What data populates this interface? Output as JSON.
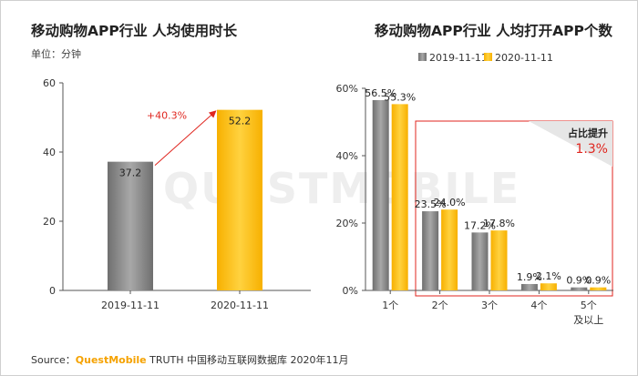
{
  "colors": {
    "gray": "#8a8a8a",
    "gold": "#ffc20e",
    "red": "#e0261f"
  },
  "watermark": "QUESTMOBILE",
  "source": {
    "prefix": "Source：",
    "brand": "QuestMobile",
    "suffix": " TRUTH 中国移动互联网数据库 2020年11月"
  },
  "chart_data": [
    {
      "type": "bar",
      "title": "移动购物APP行业 人均使用时长",
      "subtitle": "单位：分钟",
      "categories": [
        "2019-11-11",
        "2020-11-11"
      ],
      "values": [
        37.2,
        52.2
      ],
      "value_labels": [
        "37.2",
        "52.2"
      ],
      "ylim": [
        0,
        60
      ],
      "yticks": [
        0,
        20,
        40,
        60
      ],
      "ytick_labels": [
        "0",
        "20",
        "40",
        "60"
      ],
      "annotation": "+40.3%",
      "legend": "none",
      "grid": false
    },
    {
      "type": "bar",
      "title": "移动购物APP行业 人均打开APP个数",
      "categories": [
        "1个",
        "2个",
        "3个",
        "4个",
        "5个"
      ],
      "category_second_line": [
        "",
        "",
        "",
        "",
        "及以上"
      ],
      "series": [
        {
          "name": "2019-11-11",
          "values": [
            56.5,
            23.5,
            17.2,
            1.9,
            0.9
          ],
          "labels": [
            "56.5%",
            "23.5%",
            "17.2%",
            "1.9%",
            "0.9%"
          ]
        },
        {
          "name": "2020-11-11",
          "values": [
            55.3,
            24.0,
            17.8,
            2.1,
            0.9
          ],
          "labels": [
            "55.3%",
            "24.0%",
            "17.8%",
            "2.1%",
            "0.9%"
          ]
        }
      ],
      "ylim": [
        0,
        60
      ],
      "yticks": [
        0,
        20,
        40,
        60
      ],
      "ytick_labels": [
        "0%",
        "20%",
        "40%",
        "60%"
      ],
      "callout": {
        "title": "占比提升",
        "value": "1.3%"
      },
      "legend": "top",
      "grid": false
    }
  ]
}
